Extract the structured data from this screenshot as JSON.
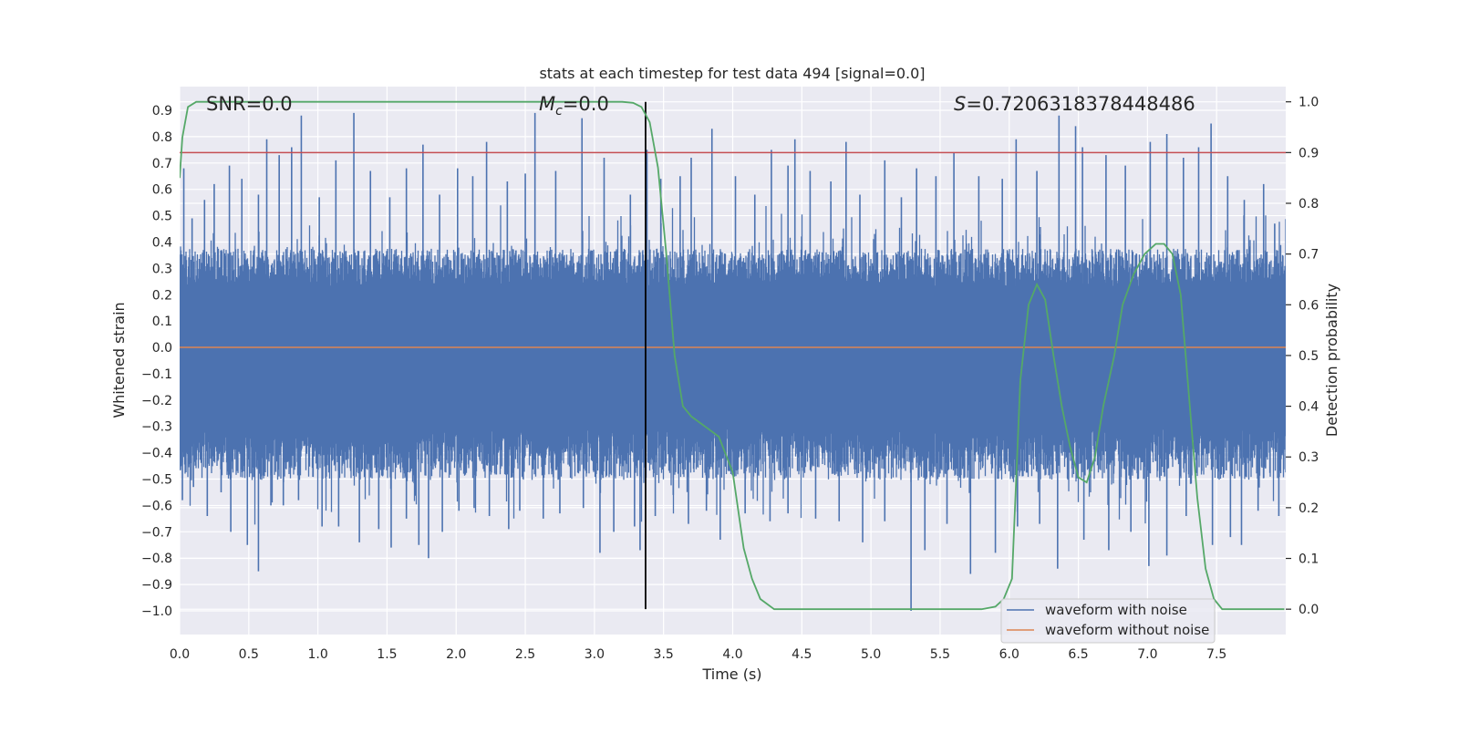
{
  "chart_data": {
    "type": "line",
    "title": "stats at each timestep for test data 494 [signal=0.0]",
    "xlabel": "Time (s)",
    "ylabel_left": "Whitened strain",
    "ylabel_right": "Detection probability",
    "xlim": [
      0.0,
      8.0
    ],
    "ylim_left": [
      -1.09,
      0.99
    ],
    "ylim_right": [
      -0.05,
      1.03
    ],
    "x_ticks": [
      "0.0",
      "0.5",
      "1.0",
      "1.5",
      "2.0",
      "2.5",
      "3.0",
      "3.5",
      "4.0",
      "4.5",
      "5.0",
      "5.5",
      "6.0",
      "6.5",
      "7.0",
      "7.5"
    ],
    "y_ticks_left": [
      "0.9",
      "0.8",
      "0.7",
      "0.6",
      "0.5",
      "0.4",
      "0.3",
      "0.2",
      "0.1",
      "0.0",
      "−0.1",
      "−0.2",
      "−0.3",
      "−0.4",
      "−0.5",
      "−0.6",
      "−0.7",
      "−0.8",
      "−0.9",
      "−1.0"
    ],
    "y_ticks_right": [
      "1.0",
      "0.9",
      "0.8",
      "0.7",
      "0.6",
      "0.5",
      "0.4",
      "0.3",
      "0.2",
      "0.1",
      "0.0"
    ],
    "grid": true,
    "legend_position": "lower-right",
    "annotations": {
      "snr": "SNR=0.0",
      "mc_symbol": "M",
      "mc_sub": "c",
      "mc_value": "=0.0",
      "s_symbol": "S",
      "s_value": "=0.7206318378448486"
    },
    "threshold": {
      "value": 0.9,
      "axis": "right",
      "color": "#c44e52"
    },
    "marker_time": 3.37,
    "series": [
      {
        "name": "waveform with noise",
        "color": "#4c72b0",
        "axis": "left",
        "noise_envelope": {
          "typical_upper": 0.32,
          "typical_lower": -0.43
        },
        "peaks": [
          {
            "x": 0.03,
            "y": 0.68
          },
          {
            "x": 0.09,
            "y": 0.49
          },
          {
            "x": 0.18,
            "y": 0.56
          },
          {
            "x": 0.25,
            "y": 0.62
          },
          {
            "x": 0.36,
            "y": 0.69
          },
          {
            "x": 0.45,
            "y": 0.64
          },
          {
            "x": 0.57,
            "y": 0.58
          },
          {
            "x": 0.63,
            "y": 0.79
          },
          {
            "x": 0.72,
            "y": 0.73
          },
          {
            "x": 0.81,
            "y": 0.76
          },
          {
            "x": 0.88,
            "y": 0.88
          },
          {
            "x": 1.01,
            "y": 0.57
          },
          {
            "x": 1.13,
            "y": 0.71
          },
          {
            "x": 1.26,
            "y": 0.89
          },
          {
            "x": 1.38,
            "y": 0.67
          },
          {
            "x": 1.52,
            "y": 0.57
          },
          {
            "x": 1.64,
            "y": 0.68
          },
          {
            "x": 1.76,
            "y": 0.77
          },
          {
            "x": 1.88,
            "y": 0.58
          },
          {
            "x": 2.01,
            "y": 0.68
          },
          {
            "x": 2.12,
            "y": 0.65
          },
          {
            "x": 2.22,
            "y": 0.78
          },
          {
            "x": 2.37,
            "y": 0.63
          },
          {
            "x": 2.5,
            "y": 0.66
          },
          {
            "x": 2.57,
            "y": 0.89
          },
          {
            "x": 2.72,
            "y": 0.67
          },
          {
            "x": 2.91,
            "y": 0.87
          },
          {
            "x": 3.07,
            "y": 0.72
          },
          {
            "x": 3.26,
            "y": 0.58
          },
          {
            "x": 3.38,
            "y": 0.75
          },
          {
            "x": 3.48,
            "y": 0.64
          },
          {
            "x": 3.62,
            "y": 0.65
          },
          {
            "x": 3.7,
            "y": 0.72
          },
          {
            "x": 3.85,
            "y": 0.83
          },
          {
            "x": 4.02,
            "y": 0.65
          },
          {
            "x": 4.16,
            "y": 0.58
          },
          {
            "x": 4.28,
            "y": 0.75
          },
          {
            "x": 4.4,
            "y": 0.69
          },
          {
            "x": 4.45,
            "y": 0.79
          },
          {
            "x": 4.56,
            "y": 0.67
          },
          {
            "x": 4.71,
            "y": 0.63
          },
          {
            "x": 4.82,
            "y": 0.78
          },
          {
            "x": 4.92,
            "y": 0.58
          },
          {
            "x": 5.1,
            "y": 0.71
          },
          {
            "x": 5.22,
            "y": 0.57
          },
          {
            "x": 5.33,
            "y": 0.68
          },
          {
            "x": 5.47,
            "y": 0.65
          },
          {
            "x": 5.6,
            "y": 0.74
          },
          {
            "x": 5.78,
            "y": 0.65
          },
          {
            "x": 5.95,
            "y": 0.64
          },
          {
            "x": 6.05,
            "y": 0.79
          },
          {
            "x": 6.2,
            "y": 0.67
          },
          {
            "x": 6.36,
            "y": 0.88
          },
          {
            "x": 6.48,
            "y": 0.84
          },
          {
            "x": 6.53,
            "y": 0.76
          },
          {
            "x": 6.7,
            "y": 0.73
          },
          {
            "x": 6.84,
            "y": 0.69
          },
          {
            "x": 7.02,
            "y": 0.78
          },
          {
            "x": 7.14,
            "y": 0.81
          },
          {
            "x": 7.26,
            "y": 0.72
          },
          {
            "x": 7.37,
            "y": 0.76
          },
          {
            "x": 7.46,
            "y": 0.85
          },
          {
            "x": 7.58,
            "y": 0.65
          },
          {
            "x": 7.7,
            "y": 0.56
          },
          {
            "x": 7.84,
            "y": 0.62
          },
          {
            "x": 7.92,
            "y": 0.47
          }
        ],
        "troughs": [
          {
            "x": 0.02,
            "y": -0.58
          },
          {
            "x": 0.1,
            "y": -0.53
          },
          {
            "x": 0.2,
            "y": -0.64
          },
          {
            "x": 0.3,
            "y": -0.55
          },
          {
            "x": 0.37,
            "y": -0.7
          },
          {
            "x": 0.49,
            "y": -0.75
          },
          {
            "x": 0.57,
            "y": -0.85
          },
          {
            "x": 0.66,
            "y": -0.6
          },
          {
            "x": 0.75,
            "y": -0.6
          },
          {
            "x": 0.86,
            "y": -0.58
          },
          {
            "x": 1.03,
            "y": -0.68
          },
          {
            "x": 1.15,
            "y": -0.68
          },
          {
            "x": 1.3,
            "y": -0.74
          },
          {
            "x": 1.44,
            "y": -0.69
          },
          {
            "x": 1.53,
            "y": -0.76
          },
          {
            "x": 1.64,
            "y": -0.65
          },
          {
            "x": 1.73,
            "y": -0.75
          },
          {
            "x": 1.8,
            "y": -0.8
          },
          {
            "x": 1.9,
            "y": -0.7
          },
          {
            "x": 2.02,
            "y": -0.62
          },
          {
            "x": 2.13,
            "y": -0.61
          },
          {
            "x": 2.24,
            "y": -0.64
          },
          {
            "x": 2.38,
            "y": -0.69
          },
          {
            "x": 2.46,
            "y": -0.62
          },
          {
            "x": 2.63,
            "y": -0.65
          },
          {
            "x": 2.75,
            "y": -0.63
          },
          {
            "x": 2.92,
            "y": -0.61
          },
          {
            "x": 3.04,
            "y": -0.78
          },
          {
            "x": 3.14,
            "y": -0.7
          },
          {
            "x": 3.29,
            "y": -0.68
          },
          {
            "x": 3.33,
            "y": -0.77
          },
          {
            "x": 3.44,
            "y": -0.64
          },
          {
            "x": 3.57,
            "y": -0.56
          },
          {
            "x": 3.68,
            "y": -0.67
          },
          {
            "x": 3.81,
            "y": -0.62
          },
          {
            "x": 3.91,
            "y": -0.73
          },
          {
            "x": 4.09,
            "y": -0.63
          },
          {
            "x": 4.27,
            "y": -0.66
          },
          {
            "x": 4.4,
            "y": -0.63
          },
          {
            "x": 4.6,
            "y": -0.65
          },
          {
            "x": 4.77,
            "y": -0.66
          },
          {
            "x": 4.94,
            "y": -0.74
          },
          {
            "x": 5.1,
            "y": -0.66
          },
          {
            "x": 5.29,
            "y": -1.0
          },
          {
            "x": 5.39,
            "y": -0.77
          },
          {
            "x": 5.55,
            "y": -0.67
          },
          {
            "x": 5.72,
            "y": -0.86
          },
          {
            "x": 5.9,
            "y": -0.78
          },
          {
            "x": 6.06,
            "y": -0.68
          },
          {
            "x": 6.22,
            "y": -0.67
          },
          {
            "x": 6.35,
            "y": -0.84
          },
          {
            "x": 6.54,
            "y": -0.73
          },
          {
            "x": 6.72,
            "y": -0.77
          },
          {
            "x": 6.88,
            "y": -0.7
          },
          {
            "x": 7.01,
            "y": -0.83
          },
          {
            "x": 7.14,
            "y": -0.79
          },
          {
            "x": 7.28,
            "y": -0.64
          },
          {
            "x": 7.47,
            "y": -0.75
          },
          {
            "x": 7.6,
            "y": -0.72
          },
          {
            "x": 7.68,
            "y": -0.75
          },
          {
            "x": 7.8,
            "y": -0.62
          },
          {
            "x": 7.95,
            "y": -0.64
          }
        ]
      },
      {
        "name": "waveform without noise",
        "color": "#dd8452",
        "axis": "left",
        "x": [
          0.0,
          8.0
        ],
        "y": [
          0.0,
          0.0
        ]
      },
      {
        "color": "#55a868",
        "axis": "right",
        "x": [
          0.0,
          0.02,
          0.06,
          0.12,
          0.5,
          1.0,
          2.0,
          3.0,
          3.2,
          3.28,
          3.34,
          3.4,
          3.46,
          3.52,
          3.58,
          3.64,
          3.7,
          3.8,
          3.9,
          4.0,
          4.08,
          4.14,
          4.2,
          4.3,
          4.5,
          5.0,
          5.5,
          5.8,
          5.9,
          5.96,
          6.02,
          6.08,
          6.14,
          6.2,
          6.26,
          6.32,
          6.38,
          6.44,
          6.5,
          6.56,
          6.62,
          6.68,
          6.76,
          6.82,
          6.9,
          6.98,
          7.06,
          7.12,
          7.18,
          7.24,
          7.3,
          7.36,
          7.42,
          7.48,
          7.54,
          7.6,
          7.7,
          7.99
        ],
        "y": [
          0.85,
          0.93,
          0.99,
          1.0,
          1.0,
          1.0,
          1.0,
          1.0,
          1.0,
          0.998,
          0.99,
          0.96,
          0.87,
          0.7,
          0.5,
          0.4,
          0.38,
          0.36,
          0.34,
          0.27,
          0.12,
          0.06,
          0.02,
          0.0,
          0.0,
          0.0,
          0.0,
          0.0,
          0.005,
          0.02,
          0.06,
          0.45,
          0.6,
          0.64,
          0.61,
          0.5,
          0.4,
          0.32,
          0.26,
          0.25,
          0.3,
          0.4,
          0.5,
          0.6,
          0.66,
          0.7,
          0.72,
          0.72,
          0.7,
          0.62,
          0.42,
          0.22,
          0.08,
          0.02,
          0.0,
          0.0,
          0.0,
          0.0
        ]
      }
    ]
  },
  "legend": {
    "entries": [
      "waveform with noise",
      "waveform without noise"
    ]
  }
}
